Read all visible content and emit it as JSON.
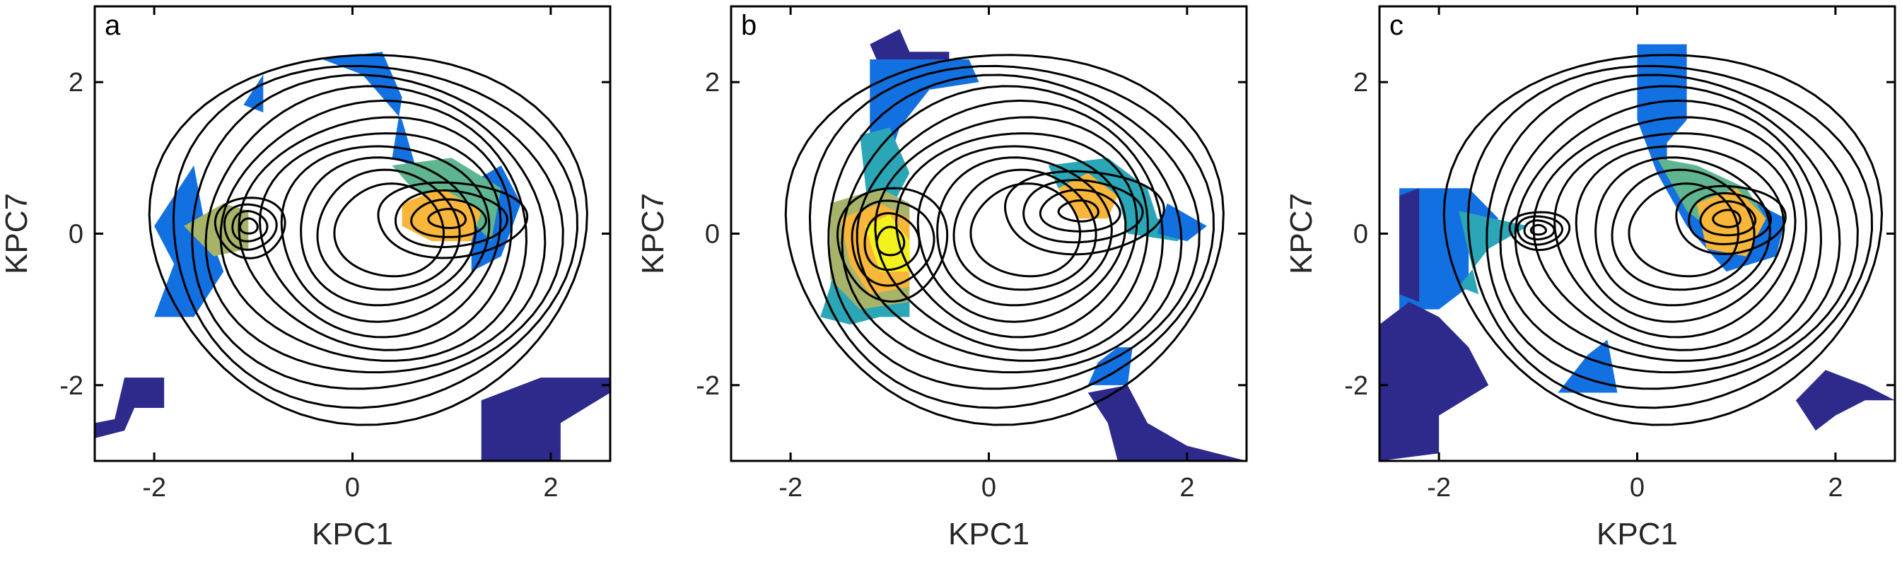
{
  "chart_data": [
    {
      "type": "contour",
      "panel_label": "a",
      "x_label": "KPC1",
      "y_label": "KPC7",
      "xlim": [
        -2.6,
        2.6
      ],
      "ylim": [
        -3,
        3
      ],
      "xticks": [
        -2,
        0,
        2
      ],
      "yticks": [
        -2,
        0,
        2
      ]
    },
    {
      "type": "contour",
      "panel_label": "b",
      "x_label": "KPC1",
      "y_label": "KPC7",
      "xlim": [
        -2.6,
        2.6
      ],
      "ylim": [
        -3,
        3
      ],
      "xticks": [
        -2,
        0,
        2
      ],
      "yticks": [
        -2,
        0,
        2
      ]
    },
    {
      "type": "contour",
      "panel_label": "c",
      "x_label": "KPC1",
      "y_label": "KPC7",
      "xlim": [
        -2.6,
        2.6
      ],
      "ylim": [
        -3,
        3
      ],
      "xticks": [
        -2,
        0,
        2
      ],
      "yticks": [
        -2,
        0,
        2
      ]
    }
  ]
}
